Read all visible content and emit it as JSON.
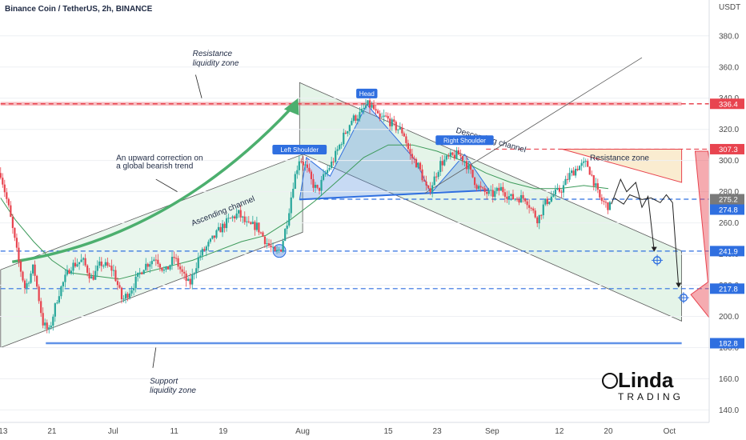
{
  "header": {
    "title": "Binance Coin / TetherUS, 2h, BINANCE"
  },
  "chart_data": {
    "type": "candlestick",
    "symbol": "Binance Coin / TetherUS, 2h, BINANCE",
    "currency": "USDT",
    "y_ticks": [
      140.0,
      160.0,
      180.0,
      200.0,
      220.0,
      240.0,
      260.0,
      280.0,
      300.0,
      320.0,
      340.0,
      360.0,
      380.0
    ],
    "ylim": [
      132,
      403
    ],
    "x_ticks": [
      {
        "label": "13",
        "day": 13
      },
      {
        "label": "21",
        "day": 21
      },
      {
        "label": "Jul",
        "day": 31
      },
      {
        "label": "11",
        "day": 41
      },
      {
        "label": "19",
        "day": 49
      },
      {
        "label": "Aug",
        "day": 62
      },
      {
        "label": "15",
        "day": 76
      },
      {
        "label": "23",
        "day": 84
      },
      {
        "label": "Sep",
        "day": 93
      },
      {
        "label": "12",
        "day": 104
      },
      {
        "label": "20",
        "day": 112
      },
      {
        "label": "Oct",
        "day": 122
      }
    ],
    "xlim": [
      12.5,
      128.5
    ],
    "price_labels": [
      {
        "value": 336.4,
        "text": "336.4",
        "color": "#e8444f"
      },
      {
        "value": 307.3,
        "text": "307.3",
        "color": "#e8444f"
      },
      {
        "value": 275.2,
        "text": "275.2",
        "color": "#7a7a7a"
      },
      {
        "value": 274.8,
        "text": "274.8",
        "color": "#2f6fe0"
      },
      {
        "value": 241.9,
        "text": "241.9",
        "color": "#2f6fe0"
      },
      {
        "value": 217.8,
        "text": "217.8",
        "color": "#2f6fe0"
      },
      {
        "value": 182.8,
        "text": "182.8",
        "color": "#2f6fe0"
      }
    ],
    "price_path": [
      [
        12.6,
        292
      ],
      [
        14.0,
        268
      ],
      [
        15.5,
        236
      ],
      [
        16.6,
        218
      ],
      [
        18.0,
        232
      ],
      [
        19.5,
        196
      ],
      [
        20.5,
        190
      ],
      [
        22.0,
        214
      ],
      [
        24.0,
        232
      ],
      [
        26.0,
        236
      ],
      [
        27.5,
        224
      ],
      [
        29.0,
        234
      ],
      [
        31.0,
        230
      ],
      [
        32.5,
        210
      ],
      [
        34.0,
        218
      ],
      [
        36.0,
        232
      ],
      [
        38.0,
        238
      ],
      [
        39.5,
        228
      ],
      [
        41.0,
        238
      ],
      [
        42.5,
        226
      ],
      [
        43.5,
        220
      ],
      [
        45.0,
        238
      ],
      [
        47.0,
        248
      ],
      [
        48.5,
        256
      ],
      [
        50.0,
        262
      ],
      [
        51.5,
        266
      ],
      [
        53.0,
        258
      ],
      [
        54.5,
        258
      ],
      [
        56.0,
        248
      ],
      [
        57.5,
        240
      ],
      [
        58.5,
        244
      ],
      [
        59.5,
        262
      ],
      [
        60.5,
        286
      ],
      [
        61.5,
        302
      ],
      [
        62.5,
        296
      ],
      [
        63.5,
        286
      ],
      [
        64.5,
        280
      ],
      [
        65.5,
        290
      ],
      [
        67.0,
        300
      ],
      [
        68.5,
        314
      ],
      [
        70.0,
        326
      ],
      [
        71.5,
        330
      ],
      [
        72.5,
        336
      ],
      [
        73.5,
        334
      ],
      [
        74.5,
        326
      ],
      [
        75.5,
        328
      ],
      [
        77.0,
        322
      ],
      [
        78.5,
        318
      ],
      [
        79.5,
        304
      ],
      [
        81.0,
        296
      ],
      [
        82.5,
        279
      ],
      [
        83.5,
        288
      ],
      [
        84.5,
        298
      ],
      [
        86.0,
        302
      ],
      [
        87.5,
        304
      ],
      [
        88.5,
        300
      ],
      [
        89.5,
        292
      ],
      [
        90.5,
        284
      ],
      [
        91.5,
        280
      ],
      [
        93.0,
        278
      ],
      [
        94.5,
        282
      ],
      [
        96.0,
        276
      ],
      [
        97.5,
        276
      ],
      [
        98.5,
        276
      ],
      [
        99.5,
        268
      ],
      [
        100.5,
        262
      ],
      [
        101.5,
        272
      ],
      [
        103.0,
        278
      ],
      [
        104.5,
        282
      ],
      [
        105.5,
        290
      ],
      [
        107.0,
        296
      ],
      [
        108.5,
        298
      ],
      [
        109.5,
        288
      ],
      [
        110.5,
        276
      ],
      [
        111.5,
        272
      ],
      [
        112.5,
        270
      ]
    ],
    "ma_path": [
      [
        12.6,
        276
      ],
      [
        15.0,
        262
      ],
      [
        18.0,
        248
      ],
      [
        21.0,
        236
      ],
      [
        24.0,
        228
      ],
      [
        28.0,
        226
      ],
      [
        32.0,
        224
      ],
      [
        36.0,
        228
      ],
      [
        40.0,
        232
      ],
      [
        44.0,
        236
      ],
      [
        48.0,
        242
      ],
      [
        52.0,
        248
      ],
      [
        56.0,
        252
      ],
      [
        60.0,
        262
      ],
      [
        64.0,
        274
      ],
      [
        68.0,
        288
      ],
      [
        72.0,
        302
      ],
      [
        76.0,
        310
      ],
      [
        80.0,
        310
      ],
      [
        84.0,
        306
      ],
      [
        88.0,
        300
      ],
      [
        92.0,
        292
      ],
      [
        96.0,
        286
      ],
      [
        100.0,
        282
      ],
      [
        104.0,
        282
      ],
      [
        108.0,
        284
      ],
      [
        112.0,
        282
      ]
    ],
    "projection_1": [
      [
        112.5,
        272
      ],
      [
        114.0,
        288
      ],
      [
        115.0,
        280
      ],
      [
        116.5,
        286
      ],
      [
        117.5,
        270
      ],
      [
        118.5,
        277
      ],
      [
        119.5,
        242
      ]
    ],
    "projection_2": [
      [
        113.0,
        276
      ],
      [
        114.5,
        272
      ],
      [
        115.5,
        278
      ],
      [
        117.5,
        275
      ],
      [
        119.0,
        276
      ],
      [
        120.5,
        273
      ],
      [
        121.5,
        278
      ],
      [
        122.5,
        273
      ],
      [
        123.5,
        219
      ]
    ],
    "channels": {
      "ascending": [
        [
          12.6,
          180
        ],
        [
          62.0,
          254
        ],
        [
          12.6,
          230
        ],
        [
          62.0,
          304
        ]
      ],
      "descending": [
        [
          61.5,
          350
        ],
        [
          124.0,
          242
        ],
        [
          61.5,
          305
        ],
        [
          124.0,
          197
        ]
      ],
      "rising_line": [
        [
          82.0,
          279
        ],
        [
          117.5,
          366
        ]
      ]
    },
    "annotations": [
      {
        "text": "Resistance",
        "x": 44.0,
        "y": 367
      },
      {
        "text": "liquidity zone",
        "x": 44.0,
        "y": 361
      },
      {
        "text": "An upward correction on",
        "x": 31.5,
        "y": 300
      },
      {
        "text": "a global bearish trend",
        "x": 31.5,
        "y": 295
      },
      {
        "text": "Ascending channel",
        "x": 44.0,
        "y": 258
      },
      {
        "text": "Descending channel",
        "x": 87.0,
        "y": 318
      },
      {
        "text": "Resistance zone",
        "x": 109.0,
        "y": 300
      },
      {
        "text": "Support",
        "x": 37.0,
        "y": 157
      },
      {
        "text": "liquidity zone",
        "x": 37.0,
        "y": 151
      },
      {
        "text": "Head",
        "x": 72.5,
        "y": 342
      },
      {
        "text": "Left Shoulder",
        "x": 61.5,
        "y": 306
      },
      {
        "text": "Right Shoulder",
        "x": 88.5,
        "y": 312
      }
    ],
    "logo": {
      "line1": "Linda",
      "line2": "TRADING"
    }
  }
}
